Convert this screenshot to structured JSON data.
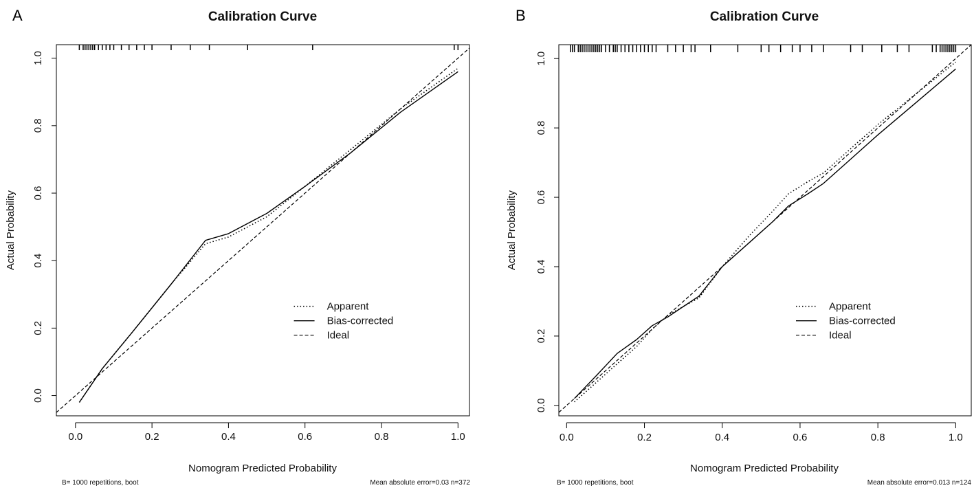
{
  "chart_data": [
    {
      "type": "line",
      "panel_label": "A",
      "title": "Calibration Curve",
      "xlabel": "Nomogram Predicted Probability",
      "ylabel": "Actual Probability",
      "xlim": [
        -0.05,
        1.03
      ],
      "ylim": [
        -0.06,
        1.04
      ],
      "xticks": [
        "0.0",
        "0.2",
        "0.4",
        "0.6",
        "0.8",
        "1.0"
      ],
      "yticks": [
        "0.0",
        "0.2",
        "0.4",
        "0.6",
        "0.8",
        "1.0"
      ],
      "legend": {
        "position": "bottom-right",
        "entries": [
          "Apparent",
          "Bias-corrected",
          "Ideal"
        ]
      },
      "series": [
        {
          "name": "Apparent",
          "style": "dotted",
          "x": [
            0.01,
            0.07,
            0.15,
            0.25,
            0.34,
            0.4,
            0.5,
            0.6,
            0.72,
            0.85,
            1.0
          ],
          "y": [
            -0.02,
            0.08,
            0.19,
            0.33,
            0.45,
            0.47,
            0.53,
            0.62,
            0.73,
            0.85,
            0.97
          ]
        },
        {
          "name": "Bias-corrected",
          "style": "solid",
          "x": [
            0.01,
            0.07,
            0.15,
            0.25,
            0.34,
            0.4,
            0.5,
            0.6,
            0.72,
            0.85,
            1.0
          ],
          "y": [
            -0.02,
            0.08,
            0.19,
            0.33,
            0.46,
            0.48,
            0.54,
            0.62,
            0.72,
            0.84,
            0.96
          ]
        },
        {
          "name": "Ideal",
          "style": "dashed",
          "x": [
            -0.05,
            1.03
          ],
          "y": [
            -0.05,
            1.03
          ]
        }
      ],
      "rug_top": [
        0.01,
        0.02,
        0.025,
        0.03,
        0.035,
        0.04,
        0.045,
        0.05,
        0.06,
        0.07,
        0.08,
        0.09,
        0.1,
        0.12,
        0.14,
        0.16,
        0.18,
        0.2,
        0.25,
        0.3,
        0.35,
        0.45,
        0.62,
        0.99,
        1.0
      ],
      "footnote_left": "B= 1000 repetitions, boot",
      "footnote_right": "Mean absolute error=0.03 n=372"
    },
    {
      "type": "line",
      "panel_label": "B",
      "title": "Calibration Curve",
      "xlabel": "Nomogram Predicted Probability",
      "ylabel": "Actual Probability",
      "xlim": [
        -0.02,
        1.04
      ],
      "ylim": [
        -0.03,
        1.04
      ],
      "xticks": [
        "0.0",
        "0.2",
        "0.4",
        "0.6",
        "0.8",
        "1.0"
      ],
      "yticks": [
        "0.0",
        "0.2",
        "0.4",
        "0.6",
        "0.8",
        "1.0"
      ],
      "legend": {
        "position": "bottom-right",
        "entries": [
          "Apparent",
          "Bias-corrected",
          "Ideal"
        ]
      },
      "series": [
        {
          "name": "Apparent",
          "style": "dotted",
          "x": [
            0.02,
            0.08,
            0.13,
            0.18,
            0.22,
            0.26,
            0.3,
            0.34,
            0.4,
            0.47,
            0.53,
            0.57,
            0.62,
            0.66,
            0.72,
            0.8,
            0.9,
            1.0
          ],
          "y": [
            0.01,
            0.07,
            0.12,
            0.17,
            0.22,
            0.26,
            0.285,
            0.31,
            0.4,
            0.49,
            0.56,
            0.61,
            0.645,
            0.67,
            0.73,
            0.81,
            0.9,
            0.99
          ]
        },
        {
          "name": "Bias-corrected",
          "style": "solid",
          "x": [
            0.02,
            0.08,
            0.13,
            0.18,
            0.22,
            0.26,
            0.3,
            0.34,
            0.4,
            0.47,
            0.53,
            0.57,
            0.62,
            0.66,
            0.72,
            0.8,
            0.9,
            1.0
          ],
          "y": [
            0.02,
            0.09,
            0.15,
            0.19,
            0.23,
            0.255,
            0.285,
            0.315,
            0.4,
            0.47,
            0.53,
            0.575,
            0.61,
            0.64,
            0.7,
            0.78,
            0.875,
            0.97
          ]
        },
        {
          "name": "Ideal",
          "style": "dashed",
          "x": [
            -0.02,
            1.04
          ],
          "y": [
            -0.02,
            1.04
          ]
        }
      ],
      "rug_top": [
        0.01,
        0.015,
        0.02,
        0.03,
        0.035,
        0.04,
        0.045,
        0.05,
        0.055,
        0.06,
        0.065,
        0.07,
        0.075,
        0.08,
        0.085,
        0.09,
        0.1,
        0.11,
        0.12,
        0.125,
        0.13,
        0.14,
        0.15,
        0.16,
        0.17,
        0.18,
        0.19,
        0.2,
        0.21,
        0.22,
        0.23,
        0.26,
        0.28,
        0.3,
        0.32,
        0.33,
        0.37,
        0.44,
        0.5,
        0.52,
        0.55,
        0.58,
        0.6,
        0.63,
        0.66,
        0.73,
        0.76,
        0.81,
        0.85,
        0.88,
        0.94,
        0.95,
        0.96,
        0.965,
        0.97,
        0.975,
        0.98,
        0.985,
        0.99,
        0.995,
        1.0
      ],
      "footnote_left": "B= 1000 repetitions, boot",
      "footnote_right": "Mean absolute error=0.013 n=124"
    }
  ]
}
